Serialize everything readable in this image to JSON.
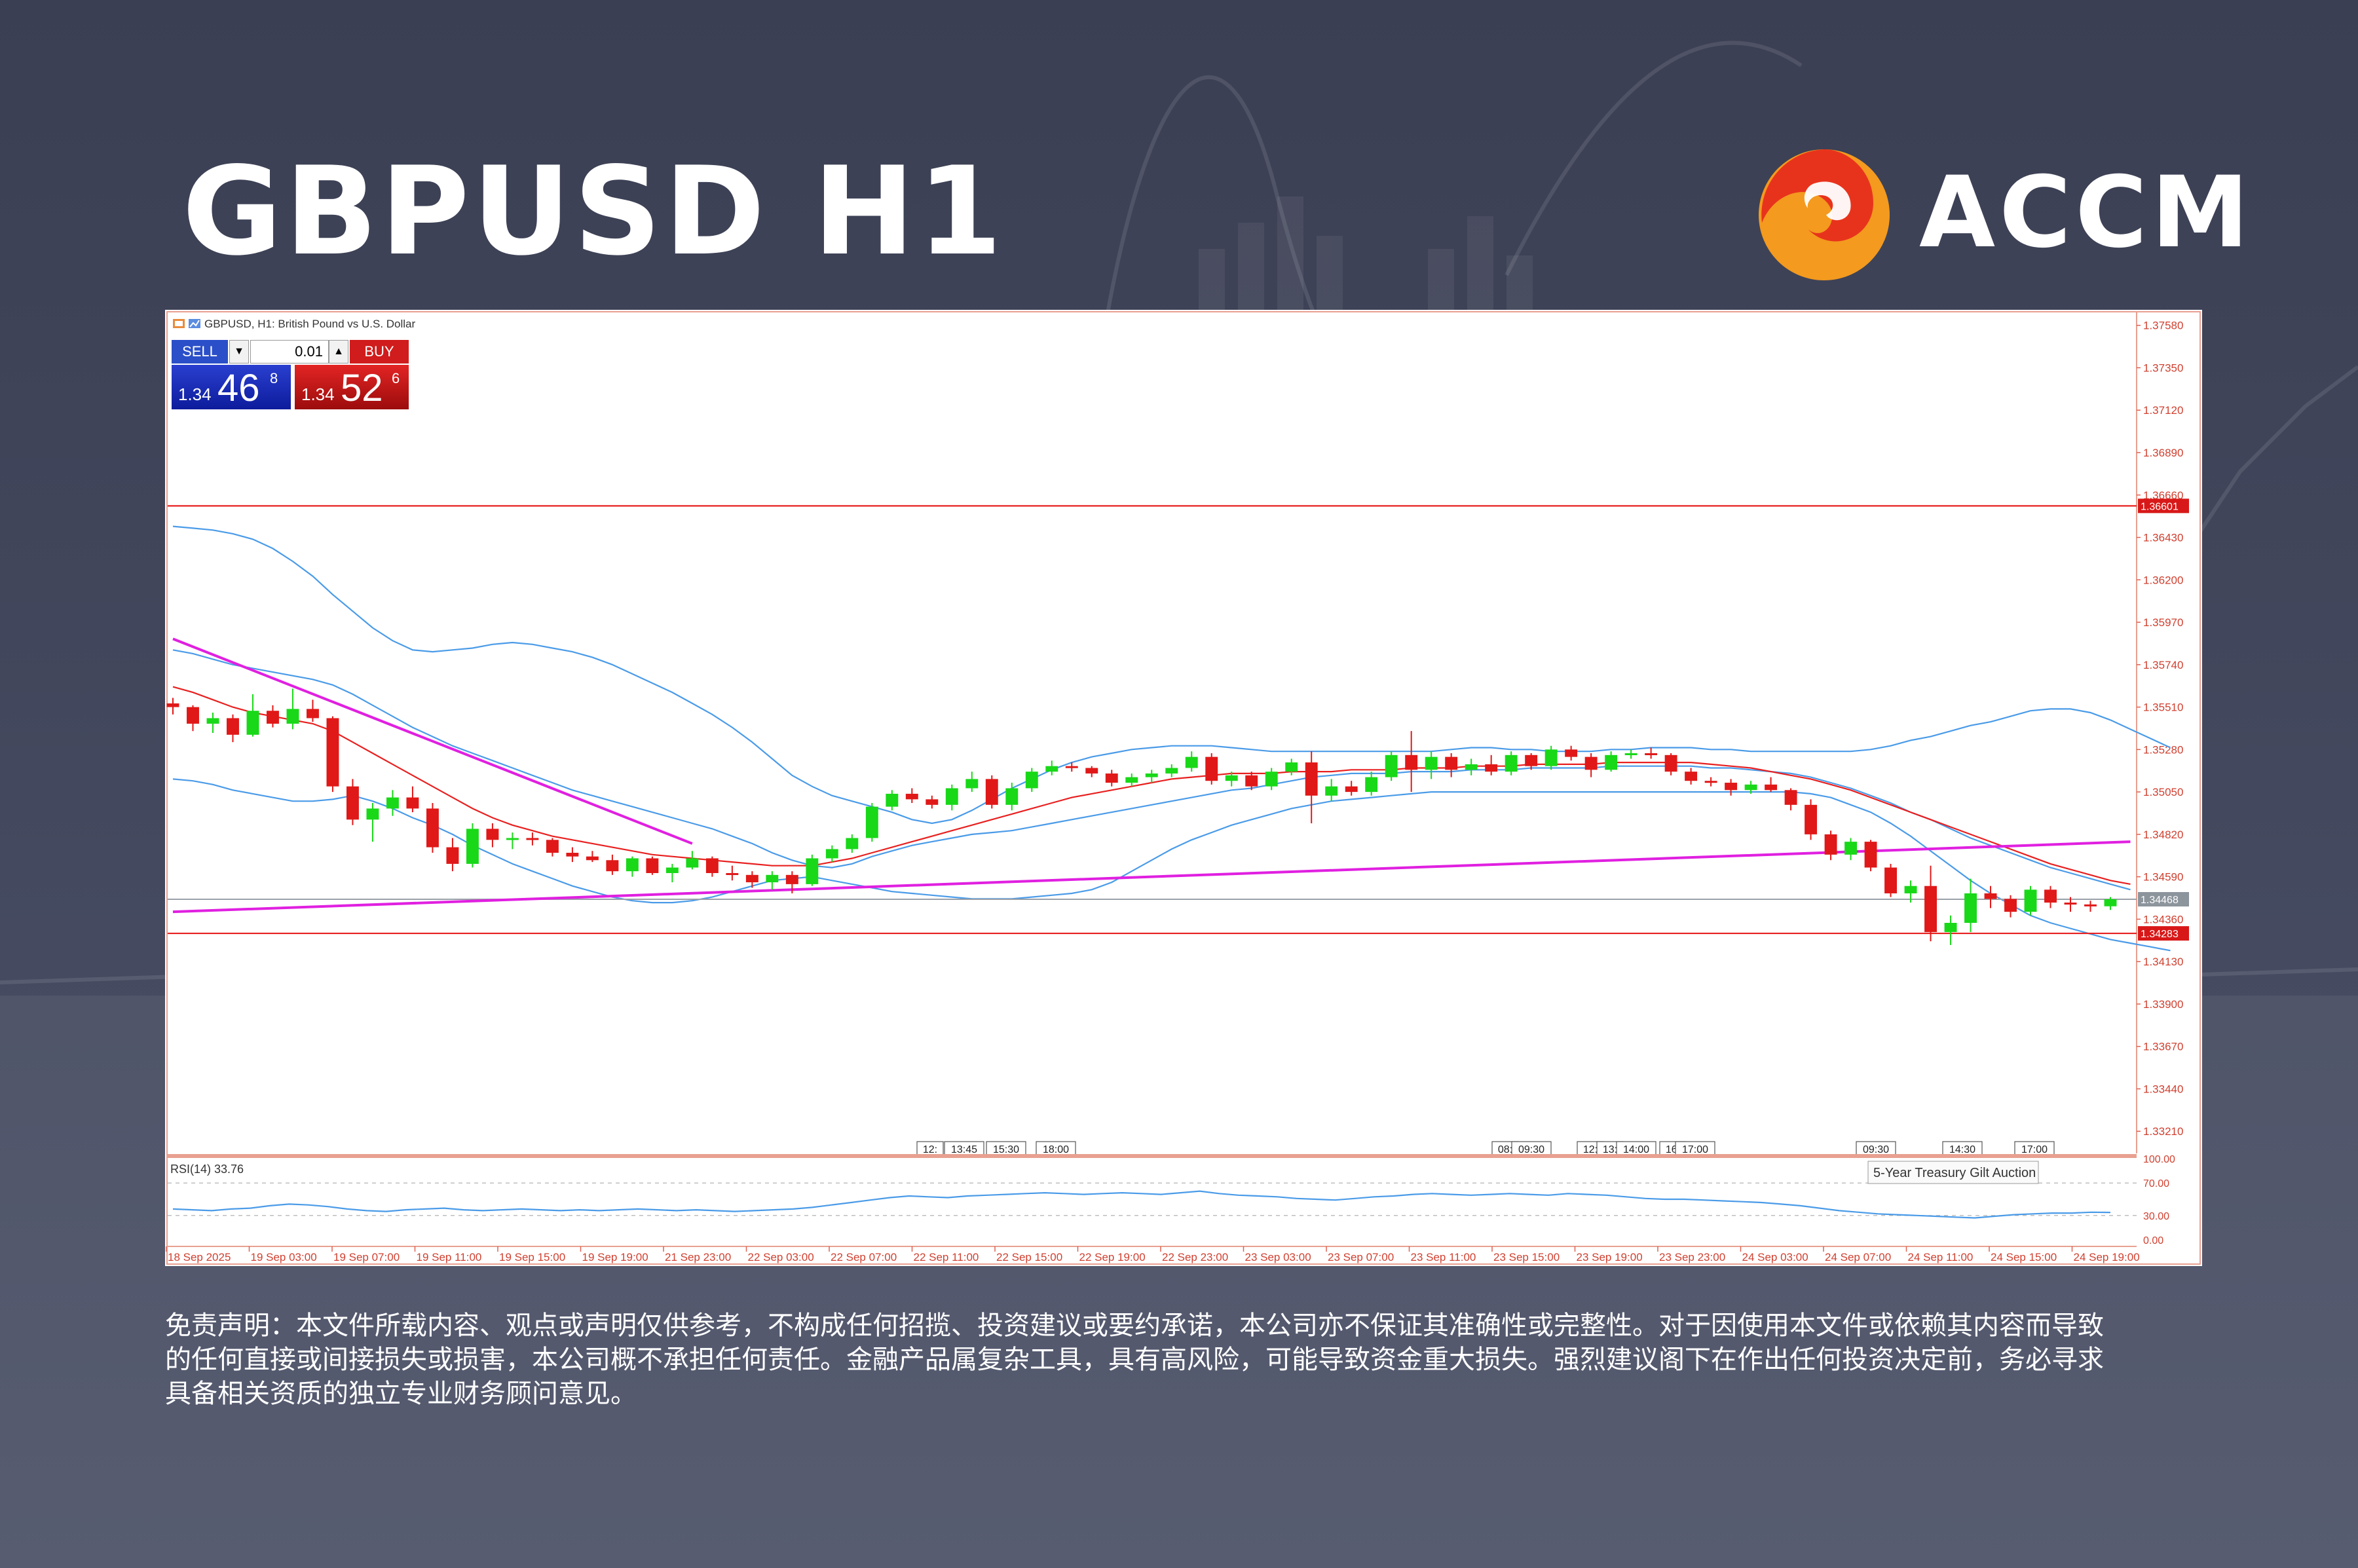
{
  "header": {
    "title": "GBPUSD H1",
    "brand": "ACCM"
  },
  "colors": {
    "background": "#3f4358",
    "bull_candle": "#18d818",
    "bear_candle": "#e01818",
    "bands": "#4a9be8",
    "moving_average": "#e82020",
    "trendline": "#e020e0",
    "level_line": "#e82020",
    "current_price_line": "#9aa0a8",
    "logo_red": "#e8331c",
    "logo_orange": "#f39a1f"
  },
  "chart": {
    "window_title": "GBPUSD, H1:  British Pound vs U.S. Dollar",
    "trade_panel": {
      "sell_label": "SELL",
      "buy_label": "BUY",
      "lot": "0.01",
      "sell_price_prefix": "1.34",
      "sell_price_big": "46",
      "sell_price_sup": "8",
      "buy_price_prefix": "1.34",
      "buy_price_big": "52",
      "buy_price_sup": "6"
    },
    "price_tag_current": "1.34468",
    "price_tag_upper": "1.36601",
    "price_tag_lower": "1.34283",
    "rsi_label": "RSI(14) 33.76",
    "tooltip": "5-Year Treasury Gilt Auction"
  },
  "chart_data": {
    "type": "line",
    "symbol": "GBPUSD",
    "timeframe": "H1",
    "x_tick_labels": [
      "18 Sep 2025",
      "19 Sep 03:00",
      "19 Sep 07:00",
      "19 Sep 11:00",
      "19 Sep 15:00",
      "19 Sep 19:00",
      "21 Sep 23:00",
      "22 Sep 03:00",
      "22 Sep 07:00",
      "22 Sep 11:00",
      "22 Sep 15:00",
      "22 Sep 19:00",
      "22 Sep 23:00",
      "23 Sep 03:00",
      "23 Sep 07:00",
      "23 Sep 11:00",
      "23 Sep 15:00",
      "23 Sep 19:00",
      "23 Sep 23:00",
      "24 Sep 03:00",
      "24 Sep 07:00",
      "24 Sep 11:00",
      "24 Sep 15:00",
      "24 Sep 19:00"
    ],
    "y_tick_labels": [
      "1.37580",
      "1.37350",
      "1.37120",
      "1.36890",
      "1.36660",
      "1.36430",
      "1.36200",
      "1.35970",
      "1.35740",
      "1.35510",
      "1.35280",
      "1.35050",
      "1.34820",
      "1.34590",
      "1.34360",
      "1.34130",
      "1.33900",
      "1.33670",
      "1.33440",
      "1.33210"
    ],
    "ylim": [
      1.3309,
      1.3765
    ],
    "horizontal_levels": [
      1.36601,
      1.34283
    ],
    "current_price": 1.34468,
    "event_markers": [
      "12:",
      "13:45",
      "15:30",
      "18:00",
      "08:",
      "09:30",
      "12:",
      "13:",
      "14:00",
      "16:",
      "17:00",
      "09:30",
      "14:30",
      "17:00"
    ],
    "candles": [
      [
        1.3553,
        1.3556,
        1.3547,
        1.3551
      ],
      [
        1.3551,
        1.3552,
        1.3538,
        1.3542
      ],
      [
        1.3542,
        1.3548,
        1.3537,
        1.3545
      ],
      [
        1.3545,
        1.3547,
        1.3532,
        1.3536
      ],
      [
        1.3536,
        1.3558,
        1.3535,
        1.3549
      ],
      [
        1.3549,
        1.3552,
        1.354,
        1.3542
      ],
      [
        1.3542,
        1.3561,
        1.3539,
        1.355
      ],
      [
        1.355,
        1.3555,
        1.3543,
        1.3545
      ],
      [
        1.3545,
        1.3546,
        1.3505,
        1.3508
      ],
      [
        1.3508,
        1.3512,
        1.3487,
        1.349
      ],
      [
        1.349,
        1.3499,
        1.3478,
        1.3496
      ],
      [
        1.3496,
        1.3506,
        1.3492,
        1.3502
      ],
      [
        1.3502,
        1.3508,
        1.3494,
        1.3496
      ],
      [
        1.3496,
        1.3499,
        1.3472,
        1.3475
      ],
      [
        1.3475,
        1.348,
        1.3462,
        1.3466
      ],
      [
        1.3466,
        1.3488,
        1.3464,
        1.3485
      ],
      [
        1.3485,
        1.3488,
        1.3475,
        1.3479
      ],
      [
        1.3479,
        1.3483,
        1.3474,
        1.348
      ],
      [
        1.348,
        1.3483,
        1.3476,
        1.3479
      ],
      [
        1.3479,
        1.348,
        1.347,
        1.3472
      ],
      [
        1.3472,
        1.3475,
        1.3467,
        1.347
      ],
      [
        1.347,
        1.3473,
        1.3467,
        1.3468
      ],
      [
        1.3468,
        1.3471,
        1.346,
        1.3462
      ],
      [
        1.3462,
        1.347,
        1.3459,
        1.3469
      ],
      [
        1.3469,
        1.347,
        1.346,
        1.3461
      ],
      [
        1.3461,
        1.3466,
        1.3456,
        1.3464
      ],
      [
        1.3464,
        1.3473,
        1.3463,
        1.3469
      ],
      [
        1.3469,
        1.347,
        1.3459,
        1.3461
      ],
      [
        1.3461,
        1.3465,
        1.3457,
        1.346
      ],
      [
        1.346,
        1.3462,
        1.3453,
        1.3456
      ],
      [
        1.3456,
        1.3462,
        1.3452,
        1.346
      ],
      [
        1.346,
        1.3462,
        1.345,
        1.3455
      ],
      [
        1.3455,
        1.3471,
        1.3454,
        1.3469
      ],
      [
        1.3469,
        1.3476,
        1.3467,
        1.3474
      ],
      [
        1.3474,
        1.3482,
        1.3472,
        1.348
      ],
      [
        1.348,
        1.3499,
        1.3478,
        1.3497
      ],
      [
        1.3497,
        1.3506,
        1.3495,
        1.3504
      ],
      [
        1.3504,
        1.3507,
        1.3499,
        1.3501
      ],
      [
        1.3501,
        1.3503,
        1.3496,
        1.3498
      ],
      [
        1.3498,
        1.3509,
        1.3495,
        1.3507
      ],
      [
        1.3507,
        1.3516,
        1.3505,
        1.3512
      ],
      [
        1.3512,
        1.3514,
        1.3496,
        1.3498
      ],
      [
        1.3498,
        1.351,
        1.3495,
        1.3507
      ],
      [
        1.3507,
        1.3518,
        1.3505,
        1.3516
      ],
      [
        1.3516,
        1.3522,
        1.3514,
        1.3519
      ],
      [
        1.3519,
        1.3521,
        1.3516,
        1.3518
      ],
      [
        1.3518,
        1.3519,
        1.3513,
        1.3515
      ],
      [
        1.3515,
        1.3517,
        1.3508,
        1.351
      ],
      [
        1.351,
        1.3515,
        1.3508,
        1.3513
      ],
      [
        1.3513,
        1.3517,
        1.351,
        1.3515
      ],
      [
        1.3515,
        1.352,
        1.3513,
        1.3518
      ],
      [
        1.3518,
        1.3527,
        1.3516,
        1.3524
      ],
      [
        1.3524,
        1.3526,
        1.3509,
        1.3511
      ],
      [
        1.3511,
        1.3516,
        1.3508,
        1.3514
      ],
      [
        1.3514,
        1.3516,
        1.3506,
        1.3508
      ],
      [
        1.3508,
        1.3518,
        1.3506,
        1.3516
      ],
      [
        1.3516,
        1.3523,
        1.3514,
        1.3521
      ],
      [
        1.3521,
        1.3527,
        1.3488,
        1.3503
      ],
      [
        1.3503,
        1.3512,
        1.35,
        1.3508
      ],
      [
        1.3508,
        1.3511,
        1.3503,
        1.3505
      ],
      [
        1.3505,
        1.3516,
        1.3503,
        1.3513
      ],
      [
        1.3513,
        1.3527,
        1.3511,
        1.3525
      ],
      [
        1.3525,
        1.3538,
        1.3505,
        1.3517
      ],
      [
        1.3517,
        1.3527,
        1.3512,
        1.3524
      ],
      [
        1.3524,
        1.3526,
        1.3513,
        1.3517
      ],
      [
        1.3517,
        1.3523,
        1.3514,
        1.352
      ],
      [
        1.352,
        1.3525,
        1.3514,
        1.3516
      ],
      [
        1.3516,
        1.3527,
        1.3514,
        1.3525
      ],
      [
        1.3525,
        1.3526,
        1.3517,
        1.3519
      ],
      [
        1.3519,
        1.353,
        1.3517,
        1.3528
      ],
      [
        1.3528,
        1.353,
        1.3522,
        1.3524
      ],
      [
        1.3524,
        1.3526,
        1.3513,
        1.3517
      ],
      [
        1.3517,
        1.3527,
        1.3516,
        1.3525
      ],
      [
        1.3525,
        1.3528,
        1.3523,
        1.3526
      ],
      [
        1.3526,
        1.3529,
        1.3523,
        1.3525
      ],
      [
        1.3525,
        1.3526,
        1.3514,
        1.3516
      ],
      [
        1.3516,
        1.3518,
        1.3509,
        1.3511
      ],
      [
        1.3511,
        1.3513,
        1.3508,
        1.351
      ],
      [
        1.351,
        1.3512,
        1.3503,
        1.3506
      ],
      [
        1.3506,
        1.3511,
        1.3504,
        1.3509
      ],
      [
        1.3509,
        1.3513,
        1.3505,
        1.3506
      ],
      [
        1.3506,
        1.3507,
        1.3495,
        1.3498
      ],
      [
        1.3498,
        1.3501,
        1.3479,
        1.3482
      ],
      [
        1.3482,
        1.3484,
        1.3468,
        1.3471
      ],
      [
        1.3471,
        1.348,
        1.3468,
        1.3478
      ],
      [
        1.3478,
        1.3479,
        1.3462,
        1.3464
      ],
      [
        1.3464,
        1.3466,
        1.3448,
        1.345
      ],
      [
        1.345,
        1.3457,
        1.3445,
        1.3454
      ],
      [
        1.3454,
        1.3465,
        1.3424,
        1.3429
      ],
      [
        1.3429,
        1.3438,
        1.3422,
        1.3434
      ],
      [
        1.3434,
        1.3458,
        1.3429,
        1.345
      ],
      [
        1.345,
        1.3454,
        1.3442,
        1.3447
      ],
      [
        1.3447,
        1.3449,
        1.3437,
        1.344
      ],
      [
        1.344,
        1.3454,
        1.3438,
        1.3452
      ],
      [
        1.3452,
        1.3454,
        1.3442,
        1.3445
      ],
      [
        1.3445,
        1.3448,
        1.344,
        1.3444
      ],
      [
        1.3444,
        1.3446,
        1.344,
        1.3443
      ],
      [
        1.3443,
        1.3448,
        1.3441,
        1.34468
      ]
    ],
    "series": [
      {
        "values": [
          1.3582,
          1.358,
          1.3577,
          1.3574,
          1.3572,
          1.357,
          1.3568,
          1.3566,
          1.3563,
          1.3558,
          1.3552,
          1.3546,
          1.354,
          1.3535,
          1.353,
          1.3526,
          1.3522,
          1.3518,
          1.3514,
          1.351,
          1.3506,
          1.3503,
          1.35,
          1.3497,
          1.3494,
          1.3491,
          1.3488,
          1.3485,
          1.3481,
          1.3477,
          1.3472,
          1.3468,
          1.3465,
          1.3464,
          1.3466,
          1.347,
          1.3473,
          1.3476,
          1.3478,
          1.348,
          1.3482,
          1.3483,
          1.3484,
          1.3486,
          1.3488,
          1.349,
          1.3492,
          1.3494,
          1.3496,
          1.3498,
          1.35,
          1.3502,
          1.3504,
          1.3506,
          1.3507,
          1.3509,
          1.3511,
          1.3513,
          1.3514,
          1.3515,
          1.3515,
          1.3515,
          1.3516,
          1.3516,
          1.3516,
          1.3517,
          1.3517,
          1.3517,
          1.3518,
          1.3518,
          1.3518,
          1.3518,
          1.3519,
          1.3519,
          1.3519,
          1.3519,
          1.3519,
          1.3518,
          1.3518,
          1.3517,
          1.3516,
          1.3515,
          1.3513,
          1.351,
          1.3507,
          1.3503,
          1.3499,
          1.3494,
          1.349,
          1.3485,
          1.348,
          1.3476,
          1.3472,
          1.3468,
          1.3464,
          1.3461,
          1.3458,
          1.3455,
          1.3452
        ]
      },
      {
        "values": [
          1.3649,
          1.3648,
          1.3647,
          1.3645,
          1.3642,
          1.3637,
          1.363,
          1.3622,
          1.3612,
          1.3603,
          1.3594,
          1.3587,
          1.3582,
          1.3581,
          1.3582,
          1.3583,
          1.3585,
          1.3586,
          1.3585,
          1.3583,
          1.3581,
          1.3578,
          1.3574,
          1.3569,
          1.3564,
          1.3559,
          1.3553,
          1.3547,
          1.354,
          1.3532,
          1.3523,
          1.3514,
          1.3508,
          1.3503,
          1.35,
          1.3497,
          1.3494,
          1.349,
          1.3488,
          1.349,
          1.3495,
          1.3501,
          1.3507,
          1.3512,
          1.3517,
          1.3521,
          1.3524,
          1.3526,
          1.3528,
          1.3529,
          1.353,
          1.353,
          1.353,
          1.3529,
          1.3528,
          1.3527,
          1.3527,
          1.3527,
          1.3527,
          1.3527,
          1.3527,
          1.3527,
          1.3527,
          1.3527,
          1.3528,
          1.3529,
          1.3529,
          1.3528,
          1.3528,
          1.3527,
          1.3527,
          1.3527,
          1.3528,
          1.3528,
          1.3529,
          1.3529,
          1.3529,
          1.3528,
          1.3528,
          1.3527,
          1.3527,
          1.3527,
          1.3527,
          1.3527,
          1.3527,
          1.3528,
          1.353,
          1.3533,
          1.3535,
          1.3538,
          1.3541,
          1.3543,
          1.3546,
          1.3549,
          1.355,
          1.355,
          1.3548,
          1.3544,
          1.3539,
          1.3534,
          1.3529
        ]
      },
      {
        "values": [
          1.3512,
          1.3511,
          1.3509,
          1.3506,
          1.3504,
          1.3502,
          1.35,
          1.35,
          1.3501,
          1.3503,
          1.35,
          1.3496,
          1.3491,
          1.3487,
          1.3482,
          1.3476,
          1.3471,
          1.3466,
          1.3462,
          1.3458,
          1.3454,
          1.3451,
          1.3448,
          1.3446,
          1.3445,
          1.3445,
          1.3446,
          1.3448,
          1.3451,
          1.3454,
          1.3457,
          1.3458,
          1.3459,
          1.3457,
          1.3455,
          1.3453,
          1.3451,
          1.345,
          1.3449,
          1.3448,
          1.3447,
          1.3447,
          1.3447,
          1.3448,
          1.3449,
          1.345,
          1.3452,
          1.3456,
          1.3462,
          1.3468,
          1.3474,
          1.3479,
          1.3483,
          1.3487,
          1.349,
          1.3493,
          1.3496,
          1.3498,
          1.35,
          1.3501,
          1.3502,
          1.3503,
          1.3504,
          1.3505,
          1.3505,
          1.3505,
          1.3505,
          1.3505,
          1.3505,
          1.3505,
          1.3505,
          1.3505,
          1.3505,
          1.3505,
          1.3505,
          1.3505,
          1.3505,
          1.3505,
          1.3505,
          1.3505,
          1.3505,
          1.3505,
          1.3504,
          1.3502,
          1.3498,
          1.3494,
          1.3488,
          1.3481,
          1.3473,
          1.3465,
          1.3457,
          1.345,
          1.3444,
          1.3438,
          1.3434,
          1.3431,
          1.3428,
          1.3425,
          1.3423,
          1.3421,
          1.3419
        ]
      },
      {
        "values": [
          1.3562,
          1.3559,
          1.3555,
          1.3551,
          1.3548,
          1.3546,
          1.3544,
          1.3542,
          1.3538,
          1.3532,
          1.3526,
          1.352,
          1.3514,
          1.3508,
          1.3502,
          1.3496,
          1.3491,
          1.3487,
          1.3484,
          1.3481,
          1.3479,
          1.3477,
          1.3475,
          1.3473,
          1.3471,
          1.347,
          1.3469,
          1.3468,
          1.3467,
          1.3466,
          1.3465,
          1.3465,
          1.3465,
          1.3467,
          1.3469,
          1.3472,
          1.3475,
          1.3478,
          1.3481,
          1.3484,
          1.3487,
          1.349,
          1.3493,
          1.3496,
          1.3499,
          1.3502,
          1.3504,
          1.3506,
          1.3508,
          1.351,
          1.3512,
          1.3513,
          1.3514,
          1.3515,
          1.3515,
          1.3515,
          1.3516,
          1.3516,
          1.3516,
          1.3517,
          1.3517,
          1.3517,
          1.3518,
          1.3518,
          1.3518,
          1.3519,
          1.3519,
          1.3519,
          1.352,
          1.352,
          1.352,
          1.352,
          1.3521,
          1.3521,
          1.3521,
          1.3521,
          1.3521,
          1.352,
          1.3519,
          1.3518,
          1.3516,
          1.3514,
          1.3512,
          1.3509,
          1.3506,
          1.3502,
          1.3498,
          1.3494,
          1.349,
          1.3486,
          1.3482,
          1.3478,
          1.3474,
          1.347,
          1.3466,
          1.3463,
          1.346,
          1.3457,
          1.3455
        ]
      }
    ],
    "trendlines": [
      {
        "from": [
          0,
          1.3588
        ],
        "to": [
          26,
          1.3477
        ]
      },
      {
        "from": [
          0,
          1.344
        ],
        "to": [
          98,
          1.3478
        ]
      }
    ],
    "rsi": {
      "name": "RSI(14)",
      "last": 33.76,
      "levels": [
        70,
        30
      ],
      "y_tick_labels": [
        "100.00",
        "70.00",
        "30.00",
        "0.00"
      ],
      "values": [
        38,
        37,
        36,
        38,
        39,
        42,
        44,
        43,
        41,
        38,
        36,
        35,
        37,
        38,
        39,
        37,
        36,
        37,
        38,
        37,
        36,
        37,
        36,
        37,
        38,
        37,
        36,
        37,
        36,
        35,
        36,
        37,
        38,
        40,
        43,
        46,
        49,
        52,
        54,
        53,
        52,
        54,
        55,
        56,
        57,
        58,
        57,
        56,
        57,
        58,
        57,
        56,
        58,
        60,
        57,
        55,
        54,
        53,
        51,
        50,
        49,
        51,
        53,
        54,
        56,
        57,
        56,
        55,
        56,
        57,
        56,
        55,
        57,
        56,
        55,
        53,
        51,
        50,
        50,
        49,
        48,
        47,
        46,
        44,
        42,
        39,
        36,
        34,
        32,
        31,
        30,
        29,
        28,
        27,
        29,
        31,
        32,
        33,
        33,
        34,
        33.76
      ]
    }
  },
  "disclaimer": {
    "lines": [
      "免责声明：本文件所载内容、观点或声明仅供参考，不构成任何招揽、投资建议或要约承诺，本公司亦不保证其准确性或完整性。对于因使用本文件或依赖其内容而导致",
      "的任何直接或间接损失或损害，本公司概不承担任何责任。金融产品属复杂工具，具有高风险，可能导致资金重大损失。强烈建议阁下在作出任何投资决定前，务必寻求",
      "具备相关资质的独立专业财务顾问意见。"
    ]
  }
}
